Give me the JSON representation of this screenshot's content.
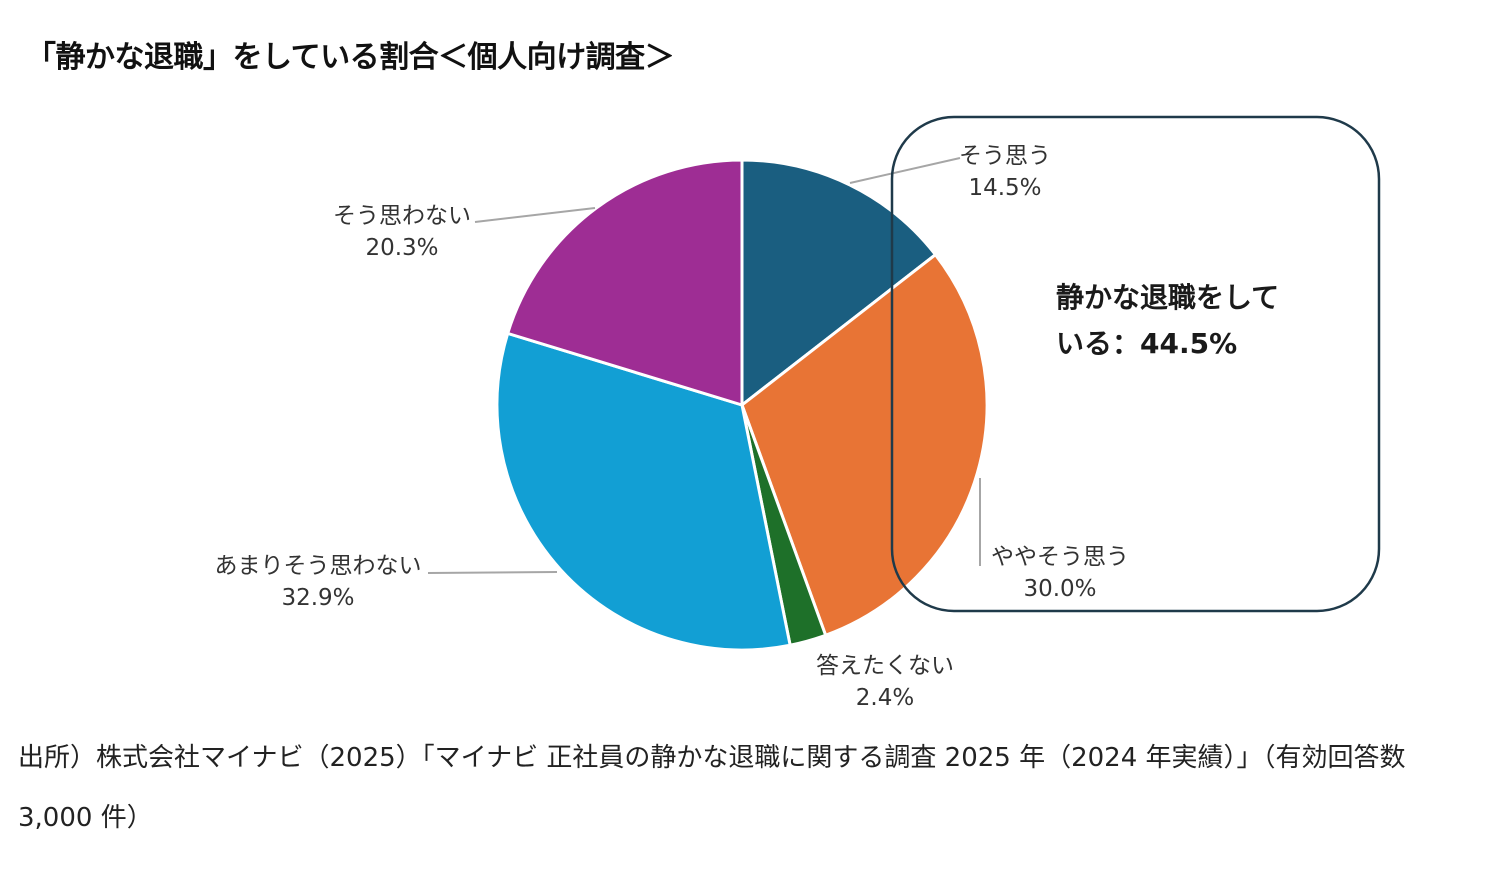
{
  "title": "「静かな退職」をしている割合＜個人向け調査＞",
  "chart_data": {
    "type": "pie",
    "title": "「静かな退職」をしている割合＜個人向け調査＞",
    "unit": "%",
    "slices": [
      {
        "label": "そう思う",
        "value": 14.5,
        "display": "14.5%",
        "color": "#1a5e80"
      },
      {
        "label": "ややそう思う",
        "value": 30.0,
        "display": "30.0%",
        "color": "#e87435"
      },
      {
        "label": "答えたくない",
        "value": 2.4,
        "display": "2.4%",
        "color": "#1e7029"
      },
      {
        "label": "あまりそう思わない",
        "value": 32.9,
        "display": "32.9%",
        "color": "#129fd4"
      },
      {
        "label": "そう思わない",
        "value": 20.3,
        "display": "20.3%",
        "color": "#9e2d94"
      }
    ],
    "callout": {
      "line1": "静かな退職をして",
      "line2": "いる：44.5%"
    }
  },
  "source": "出所）株式会社マイナビ（2025）「マイナビ 正社員の静かな退職に関する調査 2025 年（2024 年実績）」（有効回答数 3,000 件）"
}
